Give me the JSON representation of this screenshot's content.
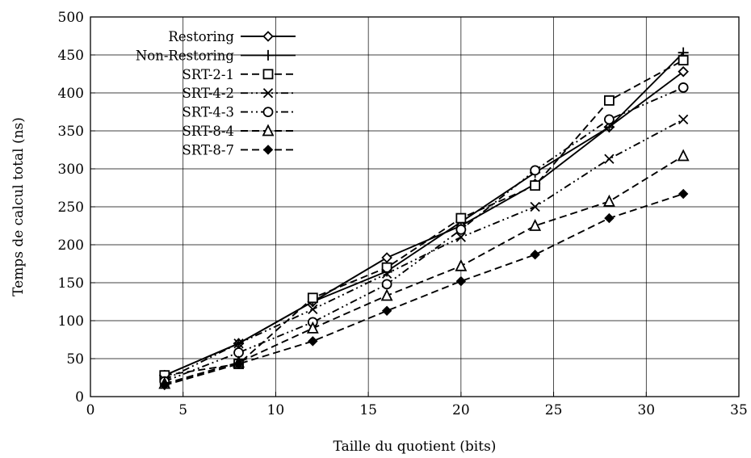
{
  "chart_data": {
    "type": "line",
    "xlabel": "Taille du quotient (bits)",
    "ylabel": "Temps de calcul total (ns)",
    "xlim": [
      0,
      35
    ],
    "ylim": [
      0,
      500
    ],
    "xticks": [
      "0",
      "5",
      "10",
      "15",
      "20",
      "25",
      "30",
      "35"
    ],
    "yticks": [
      "0",
      "50",
      "100",
      "150",
      "200",
      "250",
      "300",
      "350",
      "400",
      "450",
      "500"
    ],
    "grid": true,
    "legend_position": "top-left",
    "x": [
      4,
      8,
      12,
      16,
      20,
      24,
      28,
      32
    ],
    "series": [
      {
        "name": "Restoring",
        "marker": "diamond-open",
        "dash": "solid",
        "values": [
          28,
          70,
          125,
          183,
          225,
          280,
          355,
          428
        ]
      },
      {
        "name": "Non-Restoring",
        "marker": "plus",
        "dash": "solid",
        "values": [
          28,
          70,
          125,
          165,
          230,
          295,
          355,
          453
        ]
      },
      {
        "name": "SRT-2-1",
        "marker": "square-open",
        "dash": "dashed",
        "values": [
          28,
          43,
          130,
          170,
          235,
          278,
          390,
          443
        ]
      },
      {
        "name": "SRT-4-2",
        "marker": "cross",
        "dash": "dashdotdot",
        "values": [
          22,
          70,
          115,
          162,
          210,
          250,
          313,
          365
        ]
      },
      {
        "name": "SRT-4-3",
        "marker": "circle-open",
        "dash": "dashdotdot",
        "values": [
          20,
          58,
          98,
          148,
          220,
          298,
          365,
          407
        ]
      },
      {
        "name": "SRT-8-4",
        "marker": "triangle-open",
        "dash": "dashed",
        "values": [
          17,
          45,
          90,
          133,
          172,
          225,
          257,
          317
        ]
      },
      {
        "name": "SRT-8-7",
        "marker": "diamond-filled",
        "dash": "dashed",
        "values": [
          15,
          43,
          73,
          113,
          152,
          187,
          235,
          267
        ]
      }
    ]
  }
}
